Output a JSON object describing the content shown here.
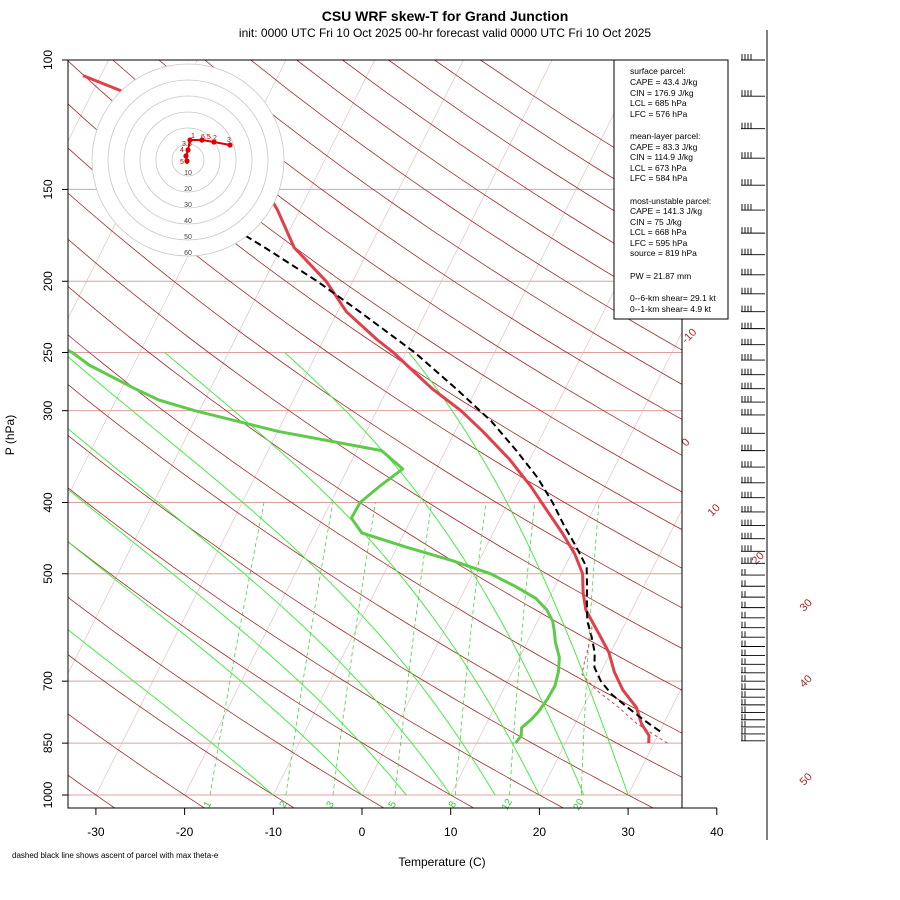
{
  "title": "CSU WRF skew-T for Grand Junction",
  "subtitle": "init: 0000 UTC Fri 10 Oct 2025     00-hr forecast valid 0000 UTC Fri 10 Oct 2025",
  "ylabel": "P (hPa)",
  "xlabel": "Temperature (C)",
  "footnote": "dashed black line shows ascent of parcel with max theta-e",
  "stats": {
    "surface_head": "surface parcel:",
    "surface": [
      "CAPE = 43.4 J/kg",
      "CIN = 176.9 J/kg",
      "LCL = 685 hPa",
      "LFC = 576 hPa"
    ],
    "mean_head": "mean-layer parcel:",
    "mean": [
      "CAPE = 83.3 J/kg",
      "CIN = 114.9 J/kg",
      "LCL = 673 hPa",
      "LFC = 584 hPa"
    ],
    "mu_head": "most-unstable parcel:",
    "mu": [
      "CAPE = 141.3 J/kg",
      "CIN = 75 J/kg",
      "LCL = 668 hPa",
      "LFC = 595 hPa",
      "source = 819 hPa"
    ],
    "pw": "PW =  21.87 mm",
    "shear6": "0--6-km shear= 29.1 kt",
    "shear1": "0--1-km shear= 4.9 kt"
  },
  "colors": {
    "temperature": "#e0404a",
    "dewpoint": "#5fca4a",
    "parcel": "#000000",
    "isotherm": "#a52a2a",
    "mixing_ratio": "#32cd32",
    "isobar": "#dba0a0",
    "hodograph": "#e00000"
  },
  "chart_data": {
    "type": "line",
    "pressure_ticks": [
      100,
      150,
      200,
      250,
      300,
      400,
      500,
      700,
      850,
      1000
    ],
    "temperature_ticks": [
      -30,
      -20,
      -10,
      0,
      10,
      20,
      30,
      40
    ],
    "isotherm_labels": [
      -10,
      0,
      10,
      20,
      30,
      40,
      50
    ],
    "mixing_ratio_labels": [
      "1",
      "2",
      "3",
      "5",
      "8",
      "12",
      "20"
    ],
    "xlim": [
      -33,
      45
    ],
    "ylim": [
      1000,
      100
    ],
    "series": [
      {
        "key": "temperature",
        "p": [
          850,
          830,
          800,
          760,
          720,
          680,
          640,
          600,
          560,
          530,
          500,
          470,
          440,
          410,
          380,
          350,
          320,
          300,
          280,
          260,
          250,
          240,
          220,
          200,
          180,
          160,
          150,
          140,
          130,
          120,
          110,
          105
        ],
        "t": [
          29.4,
          29,
          27.5,
          26,
          23.5,
          21.5,
          19.8,
          17.4,
          14.8,
          13.5,
          12.4,
          10.4,
          7.8,
          4.8,
          1.6,
          -2.2,
          -6.9,
          -10.5,
          -15,
          -19.2,
          -21.4,
          -24,
          -29,
          -33,
          -38.5,
          -42.5,
          -45,
          -50,
          -55,
          -61,
          -67,
          -72
        ]
      },
      {
        "key": "dewpoint",
        "p": [
          850,
          830,
          810,
          790,
          770,
          740,
          710,
          680,
          650,
          620,
          600,
          580,
          560,
          540,
          520,
          500,
          480,
          460,
          440,
          420,
          400,
          380,
          360,
          340,
          320,
          300,
          290,
          280,
          260,
          250,
          240,
          220,
          200,
          180,
          160,
          150,
          130,
          115,
          105
        ],
        "t": [
          14.4,
          14.6,
          14.2,
          14.8,
          15.2,
          15.5,
          15.6,
          15.2,
          14.5,
          13.2,
          12.5,
          11.7,
          10.4,
          8.5,
          5.5,
          2,
          -3,
          -9,
          -14.8,
          -16.8,
          -16.7,
          -15.4,
          -13.8,
          -17.2,
          -30,
          -40.5,
          -45.2,
          -48.5,
          -55,
          -57.6,
          -61.5,
          -67,
          -76,
          -87,
          -94,
          -97,
          -101,
          -104,
          -108
        ]
      },
      {
        "key": "parcel",
        "p": [
          819,
          790,
          760,
          730,
          700,
          670,
          640,
          610,
          580,
          550,
          520,
          490,
          460,
          430,
          400,
          370,
          340,
          310,
          280,
          250,
          220,
          200,
          180,
          170
        ],
        "t": [
          30,
          27.5,
          25,
          22.5,
          20.5,
          19,
          18.2,
          17,
          15.6,
          14.6,
          13.6,
          12.5,
          10.2,
          7.6,
          5,
          1.9,
          -2,
          -6.5,
          -12.3,
          -19,
          -27.5,
          -34,
          -41.8,
          -46.2
        ]
      },
      {
        "key": "parcel_surface",
        "p": [
          850,
          800,
          760,
          720,
          685,
          660,
          630,
          600,
          576
        ],
        "t": [
          31.5,
          27,
          24,
          20.5,
          18,
          17.6,
          17.2,
          16.7,
          16
        ]
      }
    ],
    "hodograph": {
      "rings": [
        10,
        20,
        30,
        40,
        50,
        60
      ],
      "labels": [
        "1",
        "2",
        "3",
        "4",
        "5",
        "6",
        "6.5",
        "3.5"
      ]
    },
    "wind_barbs": {
      "note": "barbs along right edge, 100-1000 hPa"
    }
  }
}
